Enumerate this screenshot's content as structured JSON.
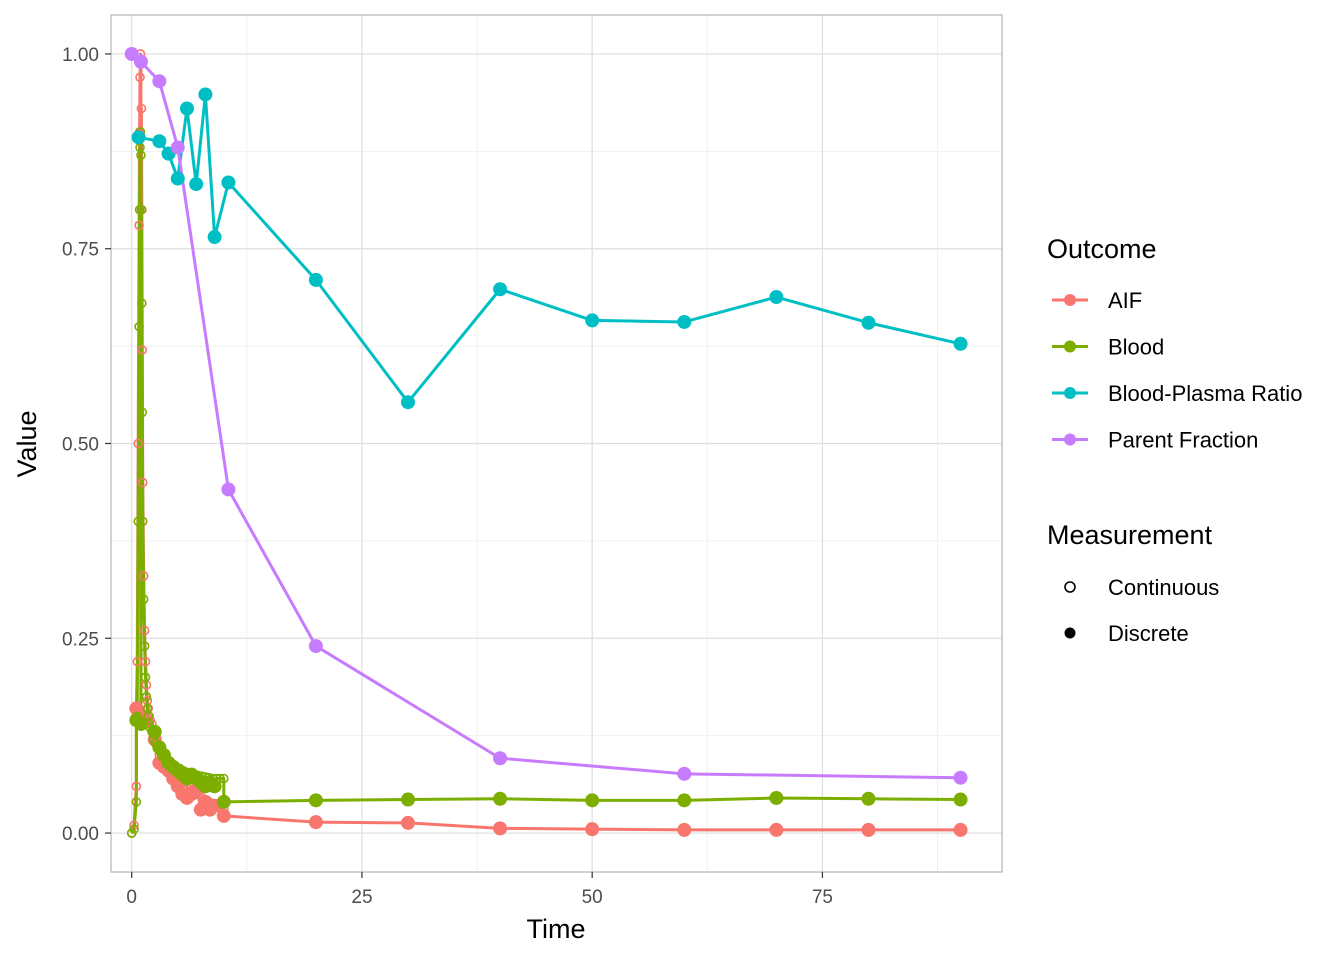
{
  "chart_data": {
    "type": "line",
    "title": "",
    "xlabel": "Time",
    "ylabel": "Value",
    "xlim": [
      -2.25,
      94.5
    ],
    "ylim": [
      -0.05,
      1.05
    ],
    "x_ticks": [
      0,
      25,
      50,
      75
    ],
    "x_tick_labels": [
      "0",
      "25",
      "50",
      "75"
    ],
    "y_ticks": [
      0,
      0.25,
      0.5,
      0.75,
      1.0
    ],
    "y_tick_labels": [
      "0.00",
      "0.25",
      "0.50",
      "0.75",
      "1.00"
    ],
    "grid": true,
    "legend_position": "right",
    "legend": {
      "outcome_title": "Outcome",
      "measurement_title": "Measurement",
      "measurement_items": [
        {
          "label": "Continuous",
          "marker": "hollow"
        },
        {
          "label": "Discrete",
          "marker": "filled"
        }
      ]
    },
    "series": [
      {
        "name": "AIF",
        "color": "#F8766D",
        "continuous": {
          "x": [
            0,
            0.25,
            0.5,
            0.6,
            0.7,
            0.8,
            0.85,
            0.9,
            0.95,
            1.0,
            1.05,
            1.1,
            1.15,
            1.2,
            1.3,
            1.4,
            1.5,
            1.6,
            1.7,
            1.8,
            1.9,
            2.0,
            2.2,
            2.4,
            2.6,
            2.8,
            3.0,
            3.3,
            3.6,
            4.0,
            4.4,
            4.8,
            5.2,
            5.6,
            6.0,
            6.4,
            6.8,
            7.2,
            7.6,
            8.0,
            8.4,
            8.8,
            9.2,
            9.6,
            10.0
          ],
          "y": [
            0,
            0.01,
            0.06,
            0.22,
            0.5,
            0.78,
            0.9,
            0.97,
            1.0,
            0.99,
            0.93,
            0.8,
            0.62,
            0.45,
            0.33,
            0.26,
            0.22,
            0.19,
            0.17,
            0.16,
            0.15,
            0.145,
            0.14,
            0.13,
            0.12,
            0.11,
            0.1,
            0.095,
            0.09,
            0.085,
            0.08,
            0.075,
            0.07,
            0.065,
            0.06,
            0.055,
            0.052,
            0.05,
            0.046,
            0.043,
            0.04,
            0.037,
            0.034,
            0.032,
            0.03
          ]
        },
        "discrete": {
          "x": [
            0.5,
            1.0,
            2.5,
            3.0,
            3.5,
            4.0,
            4.5,
            5.0,
            5.5,
            6.0,
            6.5,
            7.0,
            7.5,
            8.0,
            8.5,
            9.0,
            10.0,
            20,
            30,
            40,
            50,
            60,
            70,
            80,
            90
          ],
          "y": [
            0.16,
            0.15,
            0.12,
            0.09,
            0.085,
            0.08,
            0.07,
            0.06,
            0.05,
            0.045,
            0.05,
            0.055,
            0.03,
            0.04,
            0.03,
            0.035,
            0.022,
            0.014,
            0.013,
            0.006,
            0.005,
            0.004,
            0.004,
            0.004,
            0.004
          ]
        }
      },
      {
        "name": "Blood",
        "color": "#7CAE00",
        "continuous": {
          "x": [
            0,
            0.25,
            0.5,
            0.6,
            0.7,
            0.8,
            0.85,
            0.9,
            0.95,
            1.0,
            1.05,
            1.1,
            1.15,
            1.2,
            1.3,
            1.4,
            1.5,
            1.6,
            1.7,
            1.8,
            1.9,
            2.0,
            2.2,
            2.4,
            2.6,
            2.8,
            3.0,
            3.3,
            3.6,
            4.0,
            4.4,
            4.8,
            5.2,
            5.6,
            6.0,
            6.4,
            6.8,
            7.2,
            7.6,
            8.0,
            8.4,
            8.8,
            9.2,
            9.6,
            10.0
          ],
          "y": [
            0,
            0.005,
            0.04,
            0.15,
            0.4,
            0.65,
            0.8,
            0.88,
            0.9,
            0.87,
            0.8,
            0.68,
            0.54,
            0.4,
            0.3,
            0.24,
            0.2,
            0.175,
            0.16,
            0.15,
            0.14,
            0.135,
            0.13,
            0.12,
            0.115,
            0.11,
            0.105,
            0.1,
            0.095,
            0.09,
            0.088,
            0.085,
            0.083,
            0.08,
            0.078,
            0.076,
            0.075,
            0.074,
            0.073,
            0.072,
            0.071,
            0.07,
            0.07,
            0.07,
            0.07
          ]
        },
        "discrete": {
          "x": [
            0.5,
            1.0,
            2.5,
            3.0,
            3.5,
            4.0,
            4.5,
            5.0,
            5.5,
            6.0,
            6.5,
            7.0,
            7.5,
            8.0,
            8.5,
            9.0,
            10.0,
            20,
            30,
            40,
            50,
            60,
            70,
            80,
            90
          ],
          "y": [
            0.145,
            0.14,
            0.13,
            0.11,
            0.1,
            0.09,
            0.085,
            0.08,
            0.075,
            0.07,
            0.075,
            0.07,
            0.065,
            0.06,
            0.065,
            0.06,
            0.04,
            0.042,
            0.043,
            0.044,
            0.042,
            0.042,
            0.045,
            0.044,
            0.043
          ]
        }
      },
      {
        "name": "Blood-Plasma Ratio",
        "color": "#00BFC4",
        "discrete": {
          "x": [
            0.75,
            3,
            4,
            5,
            6,
            7,
            8,
            9,
            10.5,
            20,
            30,
            40,
            50,
            60,
            70,
            80,
            90
          ],
          "y": [
            0.893,
            0.888,
            0.872,
            0.84,
            0.93,
            0.833,
            0.948,
            0.765,
            0.835,
            0.71,
            0.553,
            0.698,
            0.658,
            0.656,
            0.688,
            0.655,
            0.628
          ]
        }
      },
      {
        "name": "Parent Fraction",
        "color": "#C77CFF",
        "discrete": {
          "x": [
            0,
            1,
            3,
            5,
            10.5,
            20,
            40,
            60,
            90
          ],
          "y": [
            1.0,
            0.99,
            0.965,
            0.88,
            0.441,
            0.24,
            0.096,
            0.076,
            0.071
          ]
        }
      }
    ]
  }
}
